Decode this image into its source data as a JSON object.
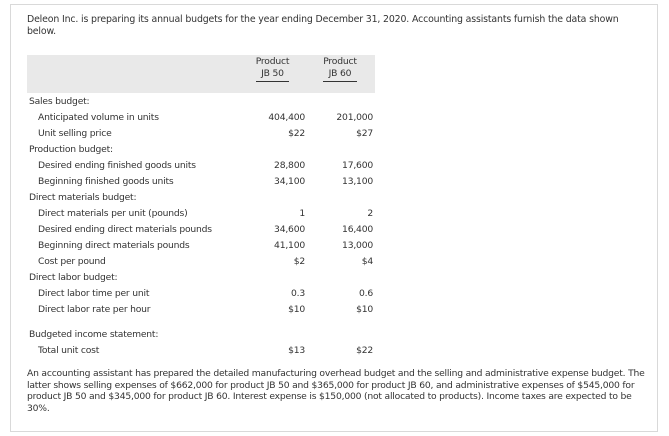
{
  "intro": "Deleon Inc. is preparing its annual budgets for the year ending December 31, 2020. Accounting assistants furnish the data shown below.",
  "table": {
    "headers": [
      "",
      "Product\nJB 50",
      "Product\nJB 60"
    ],
    "header_line1": [
      "Product",
      "Product"
    ],
    "header_line2": [
      "JB 50",
      "JB 60"
    ],
    "rows": [
      {
        "label": "Sales budget:",
        "type": "section",
        "jb50": "",
        "jb60": ""
      },
      {
        "label": "Anticipated volume in units",
        "type": "item",
        "jb50": "404,400",
        "jb60": "201,000"
      },
      {
        "label": "Unit selling price",
        "type": "item",
        "jb50": "$22",
        "jb60": "$27"
      },
      {
        "label": "Production budget:",
        "type": "section",
        "jb50": "",
        "jb60": ""
      },
      {
        "label": "Desired ending finished goods units",
        "type": "item",
        "jb50": "28,800",
        "jb60": "17,600"
      },
      {
        "label": "Beginning finished goods units",
        "type": "item",
        "jb50": "34,100",
        "jb60": "13,100"
      },
      {
        "label": "Direct materials budget:",
        "type": "section",
        "jb50": "",
        "jb60": ""
      },
      {
        "label": "Direct materials per unit (pounds)",
        "type": "item",
        "jb50": "1",
        "jb60": "2"
      },
      {
        "label": "Desired ending direct materials pounds",
        "type": "item",
        "jb50": "34,600",
        "jb60": "16,400"
      },
      {
        "label": "Beginning direct materials pounds",
        "type": "item",
        "jb50": "41,100",
        "jb60": "13,000"
      },
      {
        "label": "Cost per pound",
        "type": "item",
        "jb50": "$2",
        "jb60": "$4"
      },
      {
        "label": "Direct labor budget:",
        "type": "section",
        "jb50": "",
        "jb60": ""
      },
      {
        "label": "Direct labor time per unit",
        "type": "item",
        "jb50": "0.3",
        "jb60": "0.6"
      },
      {
        "label": "Direct labor rate per hour",
        "type": "item",
        "jb50": "$10",
        "jb60": "$10"
      },
      {
        "label": "Budgeted income statement:",
        "type": "section",
        "jb50": "",
        "jb60": ""
      },
      {
        "label": "Total unit cost",
        "type": "item",
        "jb50": "$13",
        "jb60": "$22"
      }
    ]
  },
  "footnote": "An accounting assistant has prepared the detailed manufacturing overhead budget and the selling and administrative expense budget. The latter shows selling expenses of $662,000 for product JB 50 and $365,000 for product JB 60, and administrative expenses of $545,000 for product JB 50 and $345,000 for product JB 60. Interest expense is $150,000 (not allocated to products). Income taxes are expected to be 30%."
}
